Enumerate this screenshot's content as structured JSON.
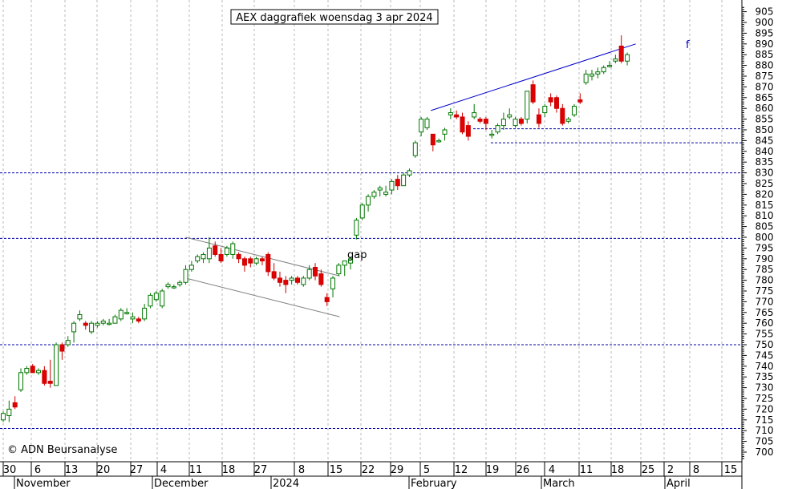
{
  "chart_data": {
    "type": "candlestick",
    "title": "AEX daggrafiek woensdag 3 apr 2024",
    "copyright": "© ADN Beursanalyse",
    "gap_label": "gap",
    "line_label": "f",
    "ylim": [
      697,
      907
    ],
    "y_ticks": [
      700,
      705,
      710,
      715,
      720,
      725,
      730,
      735,
      740,
      745,
      750,
      755,
      760,
      765,
      770,
      775,
      780,
      785,
      790,
      795,
      800,
      805,
      810,
      815,
      820,
      825,
      830,
      835,
      840,
      845,
      850,
      855,
      860,
      865,
      870,
      875,
      880,
      885,
      890,
      895,
      900,
      905
    ],
    "x_day_labels": [
      "30",
      "6",
      "13",
      "20",
      "27",
      "4",
      "11",
      "18",
      "27",
      "8",
      "15",
      "22",
      "29",
      "5",
      "12",
      "19",
      "26",
      "4",
      "11",
      "18",
      "25",
      "2",
      "8",
      "15"
    ],
    "x_month_labels": [
      "November",
      "December",
      "2024",
      "February",
      "March",
      "April"
    ],
    "horizontal_levels": [
      850.5,
      844,
      830,
      799.5,
      750,
      711
    ],
    "channels": [
      {
        "name": "",
        "from": [
          12.2,
          800
        ],
        "to": [
          22.5,
          782
        ]
      },
      {
        "name": "",
        "from": [
          12.2,
          781
        ],
        "to": [
          22.5,
          763
        ]
      },
      {
        "name": "",
        "from": [
          28.6,
          859
        ],
        "to": [
          42.3,
          890
        ]
      }
    ],
    "candles": [
      {
        "o": 715,
        "h": 719,
        "l": 714,
        "c": 718
      },
      {
        "o": 717,
        "h": 724,
        "l": 714,
        "c": 720
      },
      {
        "o": 723,
        "h": 726,
        "l": 720,
        "c": 721
      },
      {
        "o": 729,
        "h": 739,
        "l": 728,
        "c": 737
      },
      {
        "o": 737,
        "h": 740,
        "l": 736,
        "c": 739
      },
      {
        "o": 740,
        "h": 741,
        "l": 737,
        "c": 737
      },
      {
        "o": 737,
        "h": 739,
        "l": 736,
        "c": 738
      },
      {
        "o": 738,
        "h": 740,
        "l": 731,
        "c": 732
      },
      {
        "o": 733,
        "h": 743,
        "l": 730,
        "c": 732
      },
      {
        "o": 731,
        "h": 751,
        "l": 731,
        "c": 750
      },
      {
        "o": 750,
        "h": 751,
        "l": 743,
        "c": 747
      },
      {
        "o": 750,
        "h": 754,
        "l": 749,
        "c": 752
      },
      {
        "o": 756,
        "h": 761,
        "l": 751,
        "c": 760
      },
      {
        "o": 762,
        "h": 766,
        "l": 761,
        "c": 764
      },
      {
        "o": 760,
        "h": 761,
        "l": 757,
        "c": 759
      },
      {
        "o": 756,
        "h": 761,
        "l": 755,
        "c": 760
      },
      {
        "o": 759,
        "h": 761,
        "l": 758,
        "c": 760
      },
      {
        "o": 760,
        "h": 762,
        "l": 759,
        "c": 761
      },
      {
        "o": 760,
        "h": 762,
        "l": 759,
        "c": 760
      },
      {
        "o": 760,
        "h": 764,
        "l": 760,
        "c": 763
      },
      {
        "o": 762,
        "h": 767,
        "l": 761,
        "c": 766
      },
      {
        "o": 765,
        "h": 767,
        "l": 764,
        "c": 765
      },
      {
        "o": 762,
        "h": 765,
        "l": 760,
        "c": 763
      },
      {
        "o": 762,
        "h": 763,
        "l": 760,
        "c": 761
      },
      {
        "o": 762,
        "h": 769,
        "l": 761,
        "c": 767
      },
      {
        "o": 768,
        "h": 774,
        "l": 767,
        "c": 773
      },
      {
        "o": 771,
        "h": 775,
        "l": 770,
        "c": 774
      },
      {
        "o": 768,
        "h": 776,
        "l": 767,
        "c": 775
      },
      {
        "o": 777,
        "h": 779,
        "l": 776,
        "c": 778
      },
      {
        "o": 777,
        "h": 778,
        "l": 776,
        "c": 777
      },
      {
        "o": 778,
        "h": 780,
        "l": 777,
        "c": 779
      },
      {
        "o": 779,
        "h": 787,
        "l": 778,
        "c": 785
      },
      {
        "o": 785,
        "h": 789,
        "l": 784,
        "c": 787
      },
      {
        "o": 789,
        "h": 792,
        "l": 788,
        "c": 791
      },
      {
        "o": 790,
        "h": 793,
        "l": 788,
        "c": 792
      },
      {
        "o": 790,
        "h": 800,
        "l": 788,
        "c": 795
      },
      {
        "o": 796,
        "h": 798,
        "l": 791,
        "c": 792
      },
      {
        "o": 792,
        "h": 795,
        "l": 788,
        "c": 789
      },
      {
        "o": 792,
        "h": 796,
        "l": 791,
        "c": 795
      },
      {
        "o": 792,
        "h": 798,
        "l": 790,
        "c": 797
      },
      {
        "o": 792,
        "h": 793,
        "l": 788,
        "c": 790
      },
      {
        "o": 790,
        "h": 791,
        "l": 784,
        "c": 787
      },
      {
        "o": 790,
        "h": 791,
        "l": 786,
        "c": 788
      },
      {
        "o": 788,
        "h": 791,
        "l": 787,
        "c": 790
      },
      {
        "o": 790,
        "h": 791,
        "l": 787,
        "c": 789
      },
      {
        "o": 792,
        "h": 793,
        "l": 782,
        "c": 784
      },
      {
        "o": 784,
        "h": 788,
        "l": 780,
        "c": 781
      },
      {
        "o": 781,
        "h": 784,
        "l": 777,
        "c": 779
      },
      {
        "o": 780,
        "h": 782,
        "l": 774,
        "c": 778
      },
      {
        "o": 780,
        "h": 782,
        "l": 778,
        "c": 781
      },
      {
        "o": 781,
        "h": 782,
        "l": 778,
        "c": 779
      },
      {
        "o": 778,
        "h": 782,
        "l": 777,
        "c": 781
      },
      {
        "o": 781,
        "h": 787,
        "l": 780,
        "c": 785
      },
      {
        "o": 786,
        "h": 788,
        "l": 780,
        "c": 782
      },
      {
        "o": 783,
        "h": 785,
        "l": 777,
        "c": 778
      },
      {
        "o": 772,
        "h": 774,
        "l": 768,
        "c": 770
      },
      {
        "o": 776,
        "h": 782,
        "l": 772,
        "c": 781
      },
      {
        "o": 783,
        "h": 788,
        "l": 782,
        "c": 787
      },
      {
        "o": 787,
        "h": 789,
        "l": 782,
        "c": 789
      },
      {
        "o": 788,
        "h": 791,
        "l": 785,
        "c": 790
      },
      {
        "o": 801,
        "h": 809,
        "l": 799,
        "c": 808
      },
      {
        "o": 809,
        "h": 816,
        "l": 808,
        "c": 815
      },
      {
        "o": 815,
        "h": 820,
        "l": 812,
        "c": 819
      },
      {
        "o": 819,
        "h": 822,
        "l": 818,
        "c": 821
      },
      {
        "o": 822,
        "h": 824,
        "l": 819,
        "c": 823
      },
      {
        "o": 820,
        "h": 824,
        "l": 819,
        "c": 821
      },
      {
        "o": 822,
        "h": 827,
        "l": 820,
        "c": 826
      },
      {
        "o": 827,
        "h": 829,
        "l": 822,
        "c": 824
      },
      {
        "o": 824,
        "h": 830,
        "l": 824,
        "c": 829
      },
      {
        "o": 829,
        "h": 832,
        "l": 828,
        "c": 831
      },
      {
        "o": 838,
        "h": 845,
        "l": 837,
        "c": 844
      },
      {
        "o": 849,
        "h": 856,
        "l": 847,
        "c": 855
      },
      {
        "o": 851,
        "h": 856,
        "l": 850,
        "c": 855
      },
      {
        "o": 848,
        "h": 848,
        "l": 840,
        "c": 843
      },
      {
        "o": 845,
        "h": 846,
        "l": 844,
        "c": 845
      },
      {
        "o": 848,
        "h": 851,
        "l": 845,
        "c": 850
      },
      {
        "o": 857,
        "h": 860,
        "l": 855,
        "c": 858
      },
      {
        "o": 857,
        "h": 859,
        "l": 855,
        "c": 856
      },
      {
        "o": 856,
        "h": 858,
        "l": 848,
        "c": 849
      },
      {
        "o": 852,
        "h": 854,
        "l": 845,
        "c": 847
      },
      {
        "o": 856,
        "h": 862,
        "l": 855,
        "c": 858
      },
      {
        "o": 855,
        "h": 856,
        "l": 853,
        "c": 854
      },
      {
        "o": 855,
        "h": 856,
        "l": 850,
        "c": 853
      },
      {
        "o": 848,
        "h": 850,
        "l": 846,
        "c": 848
      },
      {
        "o": 849,
        "h": 853,
        "l": 848,
        "c": 852
      },
      {
        "o": 852,
        "h": 858,
        "l": 850,
        "c": 855
      },
      {
        "o": 856,
        "h": 860,
        "l": 855,
        "c": 857
      },
      {
        "o": 852,
        "h": 856,
        "l": 851,
        "c": 855
      },
      {
        "o": 855,
        "h": 856,
        "l": 852,
        "c": 853
      },
      {
        "o": 855,
        "h": 868,
        "l": 853,
        "c": 868
      },
      {
        "o": 871,
        "h": 873,
        "l": 862,
        "c": 863
      },
      {
        "o": 857,
        "h": 860,
        "l": 851,
        "c": 853
      },
      {
        "o": 858,
        "h": 862,
        "l": 856,
        "c": 861
      },
      {
        "o": 865,
        "h": 867,
        "l": 861,
        "c": 863
      },
      {
        "o": 865,
        "h": 866,
        "l": 858,
        "c": 860
      },
      {
        "o": 860,
        "h": 862,
        "l": 852,
        "c": 853
      },
      {
        "o": 854,
        "h": 856,
        "l": 853,
        "c": 855
      },
      {
        "o": 857,
        "h": 862,
        "l": 856,
        "c": 861
      },
      {
        "o": 864,
        "h": 867,
        "l": 862,
        "c": 863
      },
      {
        "o": 872,
        "h": 878,
        "l": 871,
        "c": 876
      },
      {
        "o": 875,
        "h": 878,
        "l": 873,
        "c": 876
      },
      {
        "o": 876,
        "h": 879,
        "l": 874,
        "c": 877
      },
      {
        "o": 877,
        "h": 880,
        "l": 876,
        "c": 879
      },
      {
        "o": 880,
        "h": 882,
        "l": 879,
        "c": 880
      },
      {
        "o": 882,
        "h": 885,
        "l": 881,
        "c": 883
      },
      {
        "o": 889,
        "h": 894,
        "l": 881,
        "c": 882
      },
      {
        "o": 882,
        "h": 886,
        "l": 880,
        "c": 885
      }
    ]
  }
}
